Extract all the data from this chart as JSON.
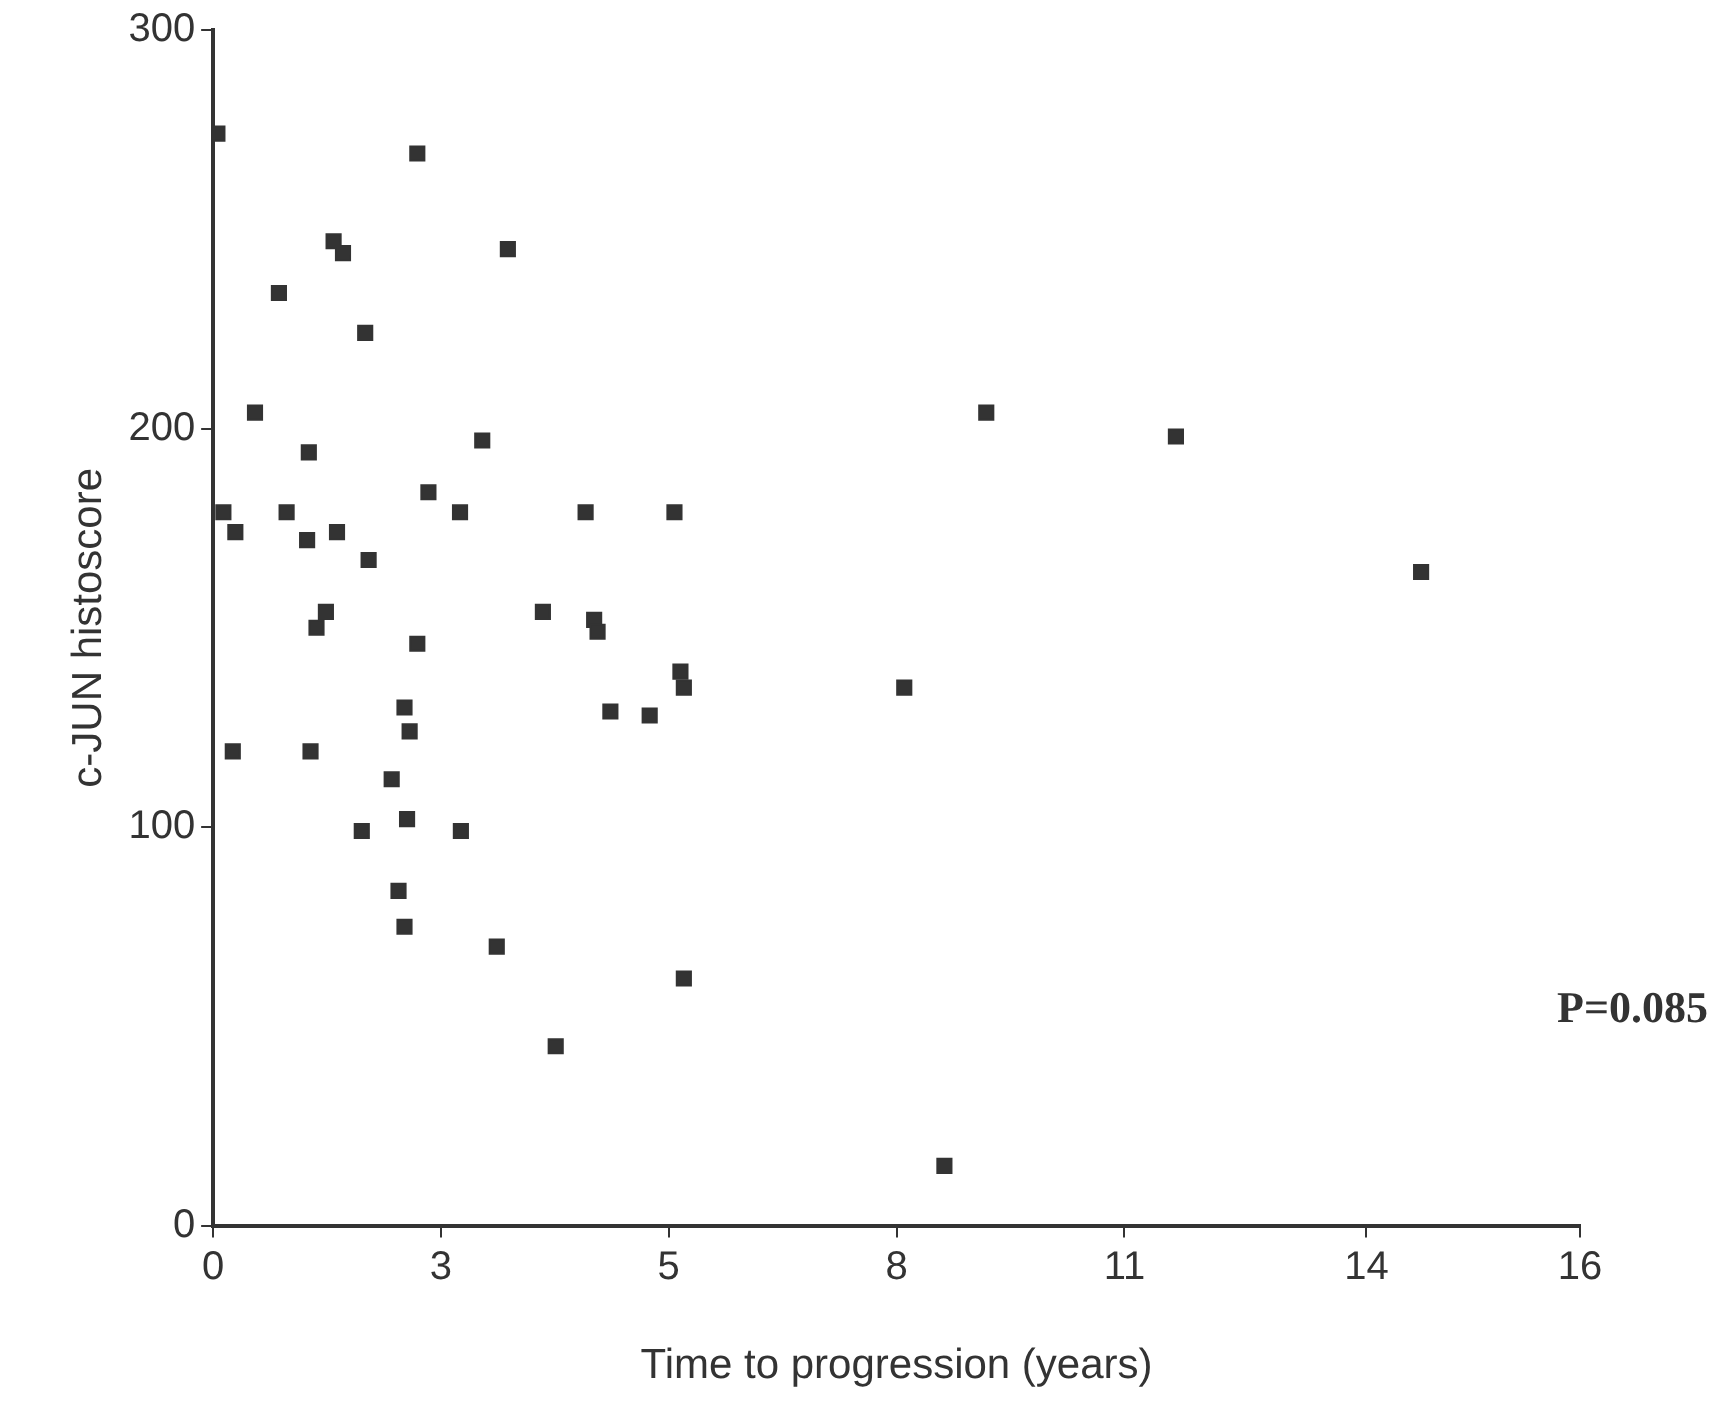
{
  "chart_data": {
    "type": "scatter",
    "xlabel": "Time to progression (years)",
    "ylabel": "c-JUN histoscore",
    "annotations": [
      "P=0.085"
    ],
    "xlim": [
      0,
      16
    ],
    "xticks": [
      0,
      {
        "value": 2.667,
        "label": "3"
      },
      {
        "value": 5.333,
        "label": "5"
      },
      8,
      {
        "value": 10.667,
        "label": "11"
      },
      {
        "value": 13.5,
        "label": "14"
      },
      16
    ],
    "ylim": [
      0,
      300
    ],
    "yticks": [
      0,
      100,
      200,
      300
    ],
    "grid": false,
    "legend": false,
    "marker": "square",
    "series": [
      {
        "color": "#333333",
        "x": [
          0.05,
          2.39,
          1.41,
          1.52,
          3.45,
          0.77,
          1.78,
          0.49,
          1.12,
          3.15,
          0.12,
          0.26,
          0.86,
          1.1,
          1.45,
          1.82,
          2.52,
          2.89,
          4.36,
          5.4,
          1.32,
          1.21,
          2.39,
          3.86,
          4.46,
          4.5,
          5.47,
          5.51,
          8.09,
          4.65,
          5.11,
          2.24,
          2.3,
          0.23,
          1.14,
          2.09,
          1.74,
          2.27,
          2.9,
          2.17,
          2.24,
          3.32,
          5.51,
          4.01,
          9.05,
          11.27,
          14.14,
          8.56
        ],
        "values": [
          274,
          269,
          247,
          244,
          245,
          234,
          224,
          204,
          194,
          197,
          179,
          174,
          179,
          172,
          174,
          167,
          184,
          179,
          179,
          179,
          154,
          150,
          146,
          154,
          152,
          149,
          139,
          135,
          135,
          129,
          128,
          130,
          124,
          119,
          119,
          112,
          99,
          102,
          99,
          84,
          75,
          70,
          62,
          45,
          204,
          198,
          164,
          15
        ]
      }
    ]
  }
}
